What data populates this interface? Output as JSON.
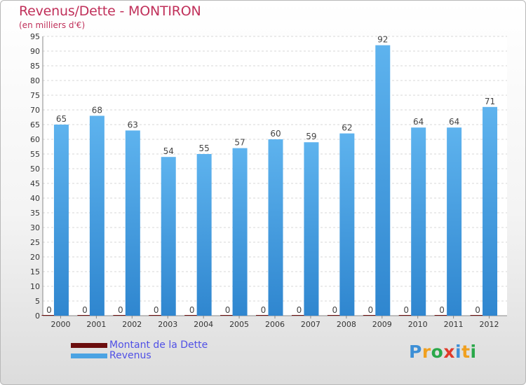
{
  "chart_data": {
    "type": "bar",
    "title": "Revenus/Dette - MONTIRON",
    "subtitle": "(en milliers d'€)",
    "categories": [
      "2000",
      "2001",
      "2002",
      "2003",
      "2004",
      "2005",
      "2006",
      "2007",
      "2008",
      "2009",
      "2010",
      "2011",
      "2012"
    ],
    "series": [
      {
        "name": "Montant de la Dette",
        "color": "#6b0d0d",
        "values": [
          0,
          0,
          0,
          0,
          0,
          0,
          0,
          0,
          0,
          0,
          0,
          0,
          0
        ]
      },
      {
        "name": "Revenus",
        "color": "#4ba3e3",
        "values": [
          65,
          68,
          63,
          54,
          55,
          57,
          60,
          59,
          62,
          92,
          64,
          64,
          71
        ]
      }
    ],
    "ylim": [
      0,
      95
    ],
    "yticks": [
      0,
      5,
      10,
      15,
      20,
      25,
      30,
      35,
      40,
      45,
      50,
      55,
      60,
      65,
      70,
      75,
      80,
      85,
      90,
      95
    ],
    "grid": true,
    "legend_position": "bottom-left"
  },
  "logo": {
    "letters": [
      "P",
      "r",
      "o",
      "x",
      "i",
      "t",
      "i"
    ],
    "colors": [
      "#3d8fd6",
      "#f0a020",
      "#2aa84a",
      "#e03a2a",
      "#3d8fd6",
      "#f0a020",
      "#2aa84a"
    ]
  }
}
